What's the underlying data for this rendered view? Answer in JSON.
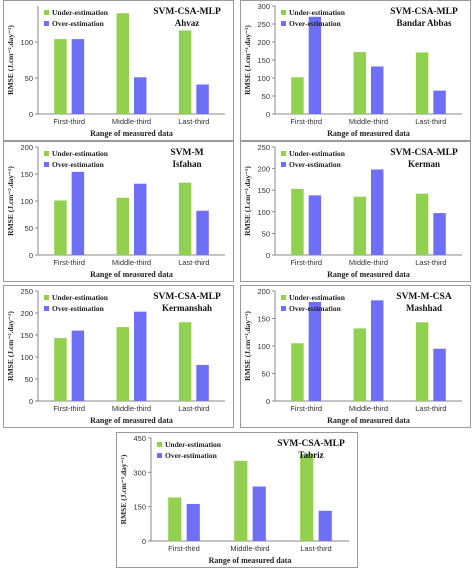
{
  "colors": {
    "under": "#92d050",
    "over": "#6f6ff5",
    "axis": "#888888",
    "grid": "#d9d9d9"
  },
  "shared": {
    "legend_under": "Under-estimation",
    "legend_over": "Over-estimation",
    "xlabel": "Range of measured data",
    "ylabel": "RMSE (J.cm⁻².day⁻¹)"
  },
  "chart_data": [
    {
      "type": "bar",
      "title": "SVM-CSA-MLP",
      "subtitle": "Ahvaz",
      "categories": [
        "First-third",
        "Middle-third",
        "Last-third"
      ],
      "series": [
        {
          "name": "Under-estimation",
          "values": [
            104,
            140,
            116
          ]
        },
        {
          "name": "Over-estimation",
          "values": [
            104,
            51,
            41
          ]
        }
      ],
      "ylim": [
        0,
        150
      ],
      "yticks": [
        0,
        50,
        100
      ],
      "xlabel": "Range of measured data",
      "ylabel": "RMSE (J.cm⁻².day⁻¹)"
    },
    {
      "type": "bar",
      "title": "SVM-CSA-MLP",
      "subtitle": "Bandar Abbas",
      "categories": [
        "First-third",
        "Middle-third",
        "Last-third"
      ],
      "series": [
        {
          "name": "Under-estimation",
          "values": [
            102,
            172,
            171
          ]
        },
        {
          "name": "Over-estimation",
          "values": [
            270,
            132,
            65
          ]
        }
      ],
      "ylim": [
        0,
        300
      ],
      "yticks": [
        0,
        50,
        100,
        150,
        200,
        250,
        300
      ],
      "xlabel": "Range of measured data",
      "ylabel": "RMSE (J.cm⁻².day⁻¹)"
    },
    {
      "type": "bar",
      "title": "SVM-M",
      "subtitle": "Isfahan",
      "categories": [
        "First-third",
        "Middle-third",
        "Last-third"
      ],
      "series": [
        {
          "name": "Under-estimation",
          "values": [
            101,
            106,
            134
          ]
        },
        {
          "name": "Over-estimation",
          "values": [
            154,
            132,
            82
          ]
        }
      ],
      "ylim": [
        0,
        200
      ],
      "yticks": [
        0,
        50,
        100,
        150,
        200
      ],
      "xlabel": "Range of measured data",
      "ylabel": "RMSE (J.cm⁻².day⁻¹)"
    },
    {
      "type": "bar",
      "title": "SVM-CSA-MLP",
      "subtitle": "Kerman",
      "categories": [
        "First-third",
        "Middle-third",
        "Last-third"
      ],
      "series": [
        {
          "name": "Under-estimation",
          "values": [
            153,
            135,
            142
          ]
        },
        {
          "name": "Over-estimation",
          "values": [
            138,
            198,
            97
          ]
        }
      ],
      "ylim": [
        0,
        250
      ],
      "yticks": [
        0,
        50,
        100,
        150,
        200,
        250
      ],
      "xlabel": "Range of measured data",
      "ylabel": "RMSE (J.cm⁻².day⁻¹)"
    },
    {
      "type": "bar",
      "title": "SVM-CSA-MLP",
      "subtitle": "Kermanshah",
      "categories": [
        "First-third",
        "Middle-third",
        "Last-third"
      ],
      "series": [
        {
          "name": "Under-estimation",
          "values": [
            143,
            168,
            179
          ]
        },
        {
          "name": "Over-estimation",
          "values": [
            160,
            203,
            82
          ]
        }
      ],
      "ylim": [
        0,
        250
      ],
      "yticks": [
        0,
        50,
        100,
        150,
        200,
        250
      ],
      "xlabel": "Range of measured data",
      "ylabel": "RMSE (J.cm⁻².day⁻¹)"
    },
    {
      "type": "bar",
      "title": "SVM-M-CSA",
      "subtitle": "Mashhad",
      "categories": [
        "First-third",
        "Middle-third",
        "Last-third"
      ],
      "series": [
        {
          "name": "Under-estimation",
          "values": [
            105,
            132,
            143
          ]
        },
        {
          "name": "Over-estimation",
          "values": [
            180,
            183,
            95
          ]
        }
      ],
      "ylim": [
        0,
        200
      ],
      "yticks": [
        0,
        50,
        100,
        150,
        200
      ],
      "xlabel": "Range of measured data",
      "ylabel": "RMSE (J.cm⁻².day⁻¹)"
    },
    {
      "type": "bar",
      "title": "SVM-CSA-MLP",
      "subtitle": "Tabriz",
      "categories": [
        "First-third",
        "Middle-third",
        "Last-third"
      ],
      "series": [
        {
          "name": "Under-estimation",
          "values": [
            190,
            350,
            380
          ]
        },
        {
          "name": "Over-estimation",
          "values": [
            162,
            238,
            132
          ]
        }
      ],
      "ylim": [
        0,
        450
      ],
      "yticks": [
        0,
        150,
        300,
        450
      ],
      "xlabel": "Range of measured data",
      "ylabel": "RMSE (J.cm⁻².day⁻¹)"
    }
  ]
}
